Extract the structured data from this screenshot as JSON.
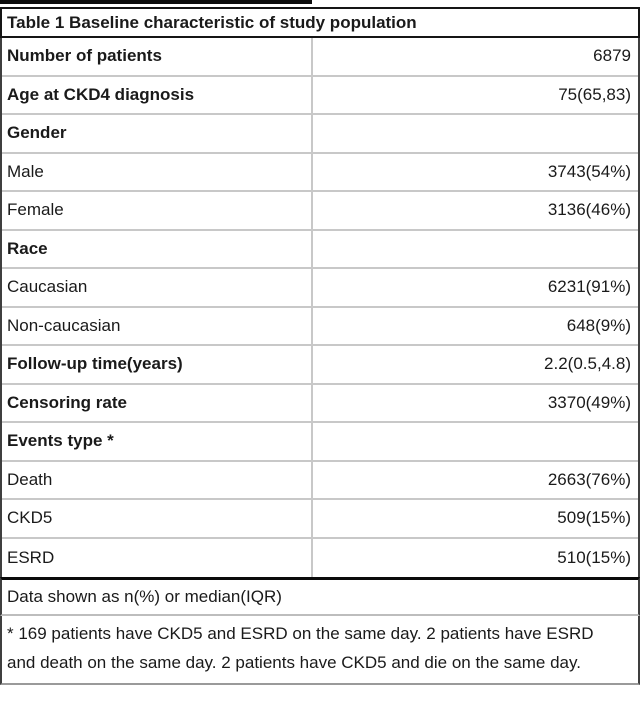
{
  "chart_data": {
    "type": "table",
    "title": "Table 1 Baseline characteristic of study population",
    "rows": [
      {
        "label": "Number of patients",
        "value": "6879",
        "bold": true
      },
      {
        "label": "Age at CKD4 diagnosis",
        "value": "75(65,83)",
        "bold": true
      },
      {
        "label": "Gender",
        "value": "",
        "bold": true
      },
      {
        "label": "Male",
        "value": "3743(54%)",
        "bold": false
      },
      {
        "label": "Female",
        "value": "3136(46%)",
        "bold": false
      },
      {
        "label": "Race",
        "value": "",
        "bold": true
      },
      {
        "label": "Caucasian",
        "value": "6231(91%)",
        "bold": false
      },
      {
        "label": "Non-caucasian",
        "value": "648(9%)",
        "bold": false
      },
      {
        "label": "Follow-up time(years)",
        "value": "2.2(0.5,4.8)",
        "bold": true
      },
      {
        "label": "Censoring rate",
        "value": "3370(49%)",
        "bold": true
      },
      {
        "label": "Events type *",
        "value": "",
        "bold": true
      },
      {
        "label": "Death",
        "value": "2663(76%)",
        "bold": false
      },
      {
        "label": "CKD5",
        "value": "509(15%)",
        "bold": false
      },
      {
        "label": "ESRD",
        "value": "510(15%)",
        "bold": false
      }
    ],
    "footer": "Data shown as n(%) or median(IQR)",
    "footnote": "* 169 patients have CKD5 and ESRD on the same day. 2 patients have ESRD and death on the same day. 2 patients have CKD5 and die on the same day.",
    "layout": {
      "legend_position": "none",
      "grid": "light-gray row separators, dark outer border, heavy rule above notes"
    }
  },
  "colors": {
    "background": "#ffffff",
    "text": "#1a1a1a",
    "border_dark": "#151515",
    "border_side": "#3f3f3f",
    "border_light": "#c8c8c8",
    "border_bottom": "#9a9a9a"
  }
}
